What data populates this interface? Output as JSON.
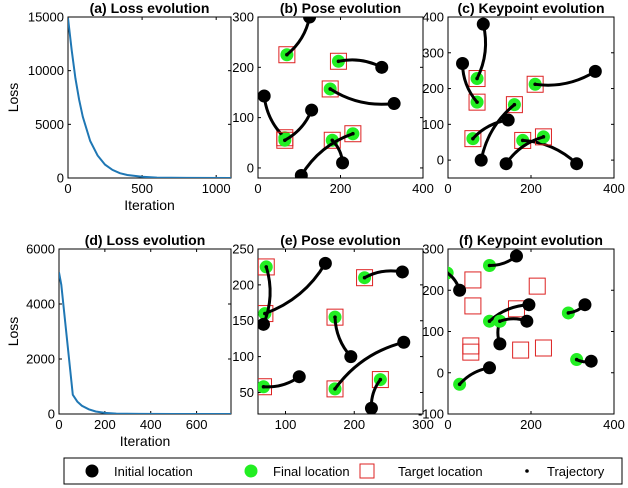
{
  "colors": {
    "initial": "#000000",
    "final": "#22ee22",
    "target": "#dd2222",
    "loss": "#1f77b4",
    "trajectory": "#000000"
  },
  "legend": {
    "position": "bottom",
    "items": [
      {
        "label": "Initial location",
        "marker": "filled-circle-black"
      },
      {
        "label": "Final location",
        "marker": "filled-circle-green"
      },
      {
        "label": "Target location",
        "marker": "open-square-red"
      },
      {
        "label": "Trajectory",
        "marker": "dot-black"
      }
    ]
  },
  "chart_data": [
    {
      "type": "line",
      "title": "(a) Loss evolution",
      "xlabel": "Iteration",
      "ylabel": "Loss",
      "xlim": [
        0,
        1100
      ],
      "ylim": [
        0,
        15000
      ],
      "xticks": [
        0,
        500,
        1000
      ],
      "yticks": [
        0,
        5000,
        10000,
        15000
      ],
      "series": [
        {
          "x": [
            0,
            25,
            50,
            75,
            100,
            150,
            200,
            250,
            300,
            350,
            400,
            500,
            600,
            800,
            1100
          ],
          "y": [
            14900,
            11900,
            9300,
            7300,
            5700,
            3450,
            2100,
            1250,
            750,
            450,
            280,
            110,
            40,
            10,
            0
          ]
        }
      ]
    },
    {
      "type": "scatter",
      "title": "(b) Pose evolution",
      "xlim": [
        0,
        400
      ],
      "ylim": [
        -20,
        300
      ],
      "xticks": [
        0,
        200,
        400
      ],
      "yticks": [
        0,
        100,
        200,
        300
      ],
      "trajectories": [
        {
          "initial": [
            125,
            300
          ],
          "final": [
            70,
            225
          ],
          "target": [
            70,
            225
          ]
        },
        {
          "initial": [
            300,
            200
          ],
          "final": [
            195,
            212
          ],
          "target": [
            195,
            212
          ]
        },
        {
          "initial": [
            330,
            128
          ],
          "final": [
            175,
            157
          ],
          "target": [
            175,
            157
          ]
        },
        {
          "initial": [
            15,
            143
          ],
          "final": [
            65,
            60
          ],
          "target": [
            65,
            60
          ]
        },
        {
          "initial": [
            130,
            115
          ],
          "final": [
            65,
            55
          ],
          "target": [
            65,
            55
          ]
        },
        {
          "initial": [
            205,
            10
          ],
          "final": [
            180,
            55
          ],
          "target": [
            180,
            55
          ]
        },
        {
          "initial": [
            105,
            -15
          ],
          "final": [
            230,
            68
          ],
          "target": [
            230,
            68
          ]
        }
      ]
    },
    {
      "type": "scatter",
      "title": "(c) Keypoint evolution",
      "xlim": [
        0,
        400
      ],
      "ylim": [
        -50,
        400
      ],
      "xticks": [
        0,
        200,
        400
      ],
      "yticks": [
        0,
        100,
        200,
        300,
        400
      ],
      "trajectories": [
        {
          "initial": [
            85,
            380
          ],
          "final": [
            70,
            228
          ],
          "target": [
            70,
            228
          ]
        },
        {
          "initial": [
            35,
            270
          ],
          "final": [
            70,
            162
          ],
          "target": [
            70,
            162
          ]
        },
        {
          "initial": [
            355,
            248
          ],
          "final": [
            210,
            212
          ],
          "target": [
            210,
            212
          ]
        },
        {
          "initial": [
            145,
            112
          ],
          "final": [
            60,
            60
          ],
          "target": [
            60,
            60
          ]
        },
        {
          "initial": [
            80,
            0
          ],
          "final": [
            160,
            155
          ],
          "target": [
            160,
            155
          ]
        },
        {
          "initial": [
            310,
            -10
          ],
          "final": [
            180,
            55
          ],
          "target": [
            180,
            55
          ]
        },
        {
          "initial": [
            140,
            -10
          ],
          "final": [
            230,
            65
          ],
          "target": [
            230,
            65
          ]
        }
      ]
    },
    {
      "type": "line",
      "title": "(d) Loss evolution",
      "xlabel": "Iteration",
      "ylabel": "Loss",
      "xlim": [
        0,
        750
      ],
      "ylim": [
        0,
        6000
      ],
      "xticks": [
        0,
        200,
        400,
        600
      ],
      "yticks": [
        0,
        2000,
        4000,
        6000
      ],
      "series": [
        {
          "x": [
            0,
            10,
            20,
            30,
            40,
            50,
            60,
            80,
            100,
            130,
            160,
            200,
            250,
            350,
            500,
            750
          ],
          "y": [
            5150,
            4700,
            3900,
            3100,
            2300,
            1500,
            700,
            450,
            300,
            170,
            90,
            40,
            15,
            5,
            0,
            0
          ]
        }
      ]
    },
    {
      "type": "scatter",
      "title": "(e) Pose evolution",
      "xlim": [
        60,
        300
      ],
      "ylim": [
        20,
        250
      ],
      "xticks": [
        100,
        200,
        300
      ],
      "yticks": [
        50,
        100,
        150,
        200,
        250
      ],
      "trajectories": [
        {
          "initial": [
            158,
            230
          ],
          "final": [
            70,
            160
          ],
          "target": [
            70,
            160
          ]
        },
        {
          "initial": [
            68,
            145
          ],
          "final": [
            72,
            225
          ],
          "target": [
            72,
            225
          ]
        },
        {
          "initial": [
            195,
            100
          ],
          "final": [
            172,
            155
          ],
          "target": [
            172,
            155
          ]
        },
        {
          "initial": [
            270,
            218
          ],
          "final": [
            215,
            210
          ],
          "target": [
            215,
            210
          ]
        },
        {
          "initial": [
            120,
            72
          ],
          "final": [
            68,
            58
          ],
          "target": [
            68,
            58
          ]
        },
        {
          "initial": [
            272,
            120
          ],
          "final": [
            172,
            55
          ],
          "target": [
            172,
            55
          ]
        },
        {
          "initial": [
            225,
            28
          ],
          "final": [
            238,
            68
          ],
          "target": [
            238,
            68
          ]
        }
      ]
    },
    {
      "type": "scatter",
      "title": "(f) Keypoint evolution",
      "xlim": [
        0,
        400
      ],
      "ylim": [
        -100,
        300
      ],
      "xticks": [
        0,
        200,
        400
      ],
      "yticks": [
        -100,
        0,
        100,
        200,
        300
      ],
      "trajectories": [
        {
          "initial": [
            165,
            283
          ],
          "final": [
            100,
            260
          ],
          "target": [
            60,
            225
          ]
        },
        {
          "initial": [
            28,
            200
          ],
          "final": [
            -2,
            242
          ],
          "target": [
            60,
            162
          ]
        },
        {
          "initial": [
            330,
            165
          ],
          "final": [
            290,
            145
          ],
          "target": [
            215,
            210
          ]
        },
        {
          "initial": [
            195,
            165
          ],
          "final": [
            100,
            125
          ],
          "target": [
            165,
            155
          ]
        },
        {
          "initial": [
            125,
            70
          ],
          "final": [
            125,
            125
          ],
          "target": [
            55,
            65
          ]
        },
        {
          "initial": [
            190,
            125
          ],
          "final": [
            125,
            125
          ],
          "target": [
            55,
            50
          ]
        },
        {
          "initial": [
            345,
            28
          ],
          "final": [
            310,
            32
          ],
          "target": [
            175,
            55
          ]
        },
        {
          "initial": [
            100,
            12
          ],
          "final": [
            28,
            -28
          ],
          "target": [
            230,
            60
          ]
        }
      ]
    }
  ]
}
